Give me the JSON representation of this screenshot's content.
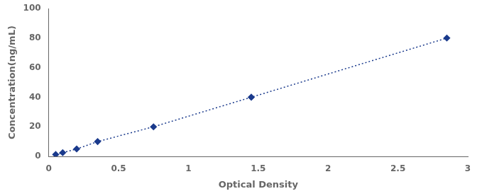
{
  "chart_data": {
    "type": "line",
    "x": [
      0.05,
      0.1,
      0.2,
      0.35,
      0.75,
      1.45,
      2.85
    ],
    "values": [
      1.25,
      2.5,
      5.0,
      10.0,
      20.0,
      40.0,
      80.0
    ],
    "xlabel": "Optical Density",
    "ylabel": "Concentration(ng/mL)",
    "xlim": [
      0,
      3
    ],
    "ylim": [
      0,
      100
    ],
    "xticks": [
      0,
      0.5,
      1,
      1.5,
      2,
      2.5,
      3
    ],
    "yticks": [
      0,
      20,
      40,
      60,
      80,
      100
    ],
    "color": "#1a3a8c",
    "marker": "diamond",
    "line_style": "dotted",
    "grid": false
  }
}
